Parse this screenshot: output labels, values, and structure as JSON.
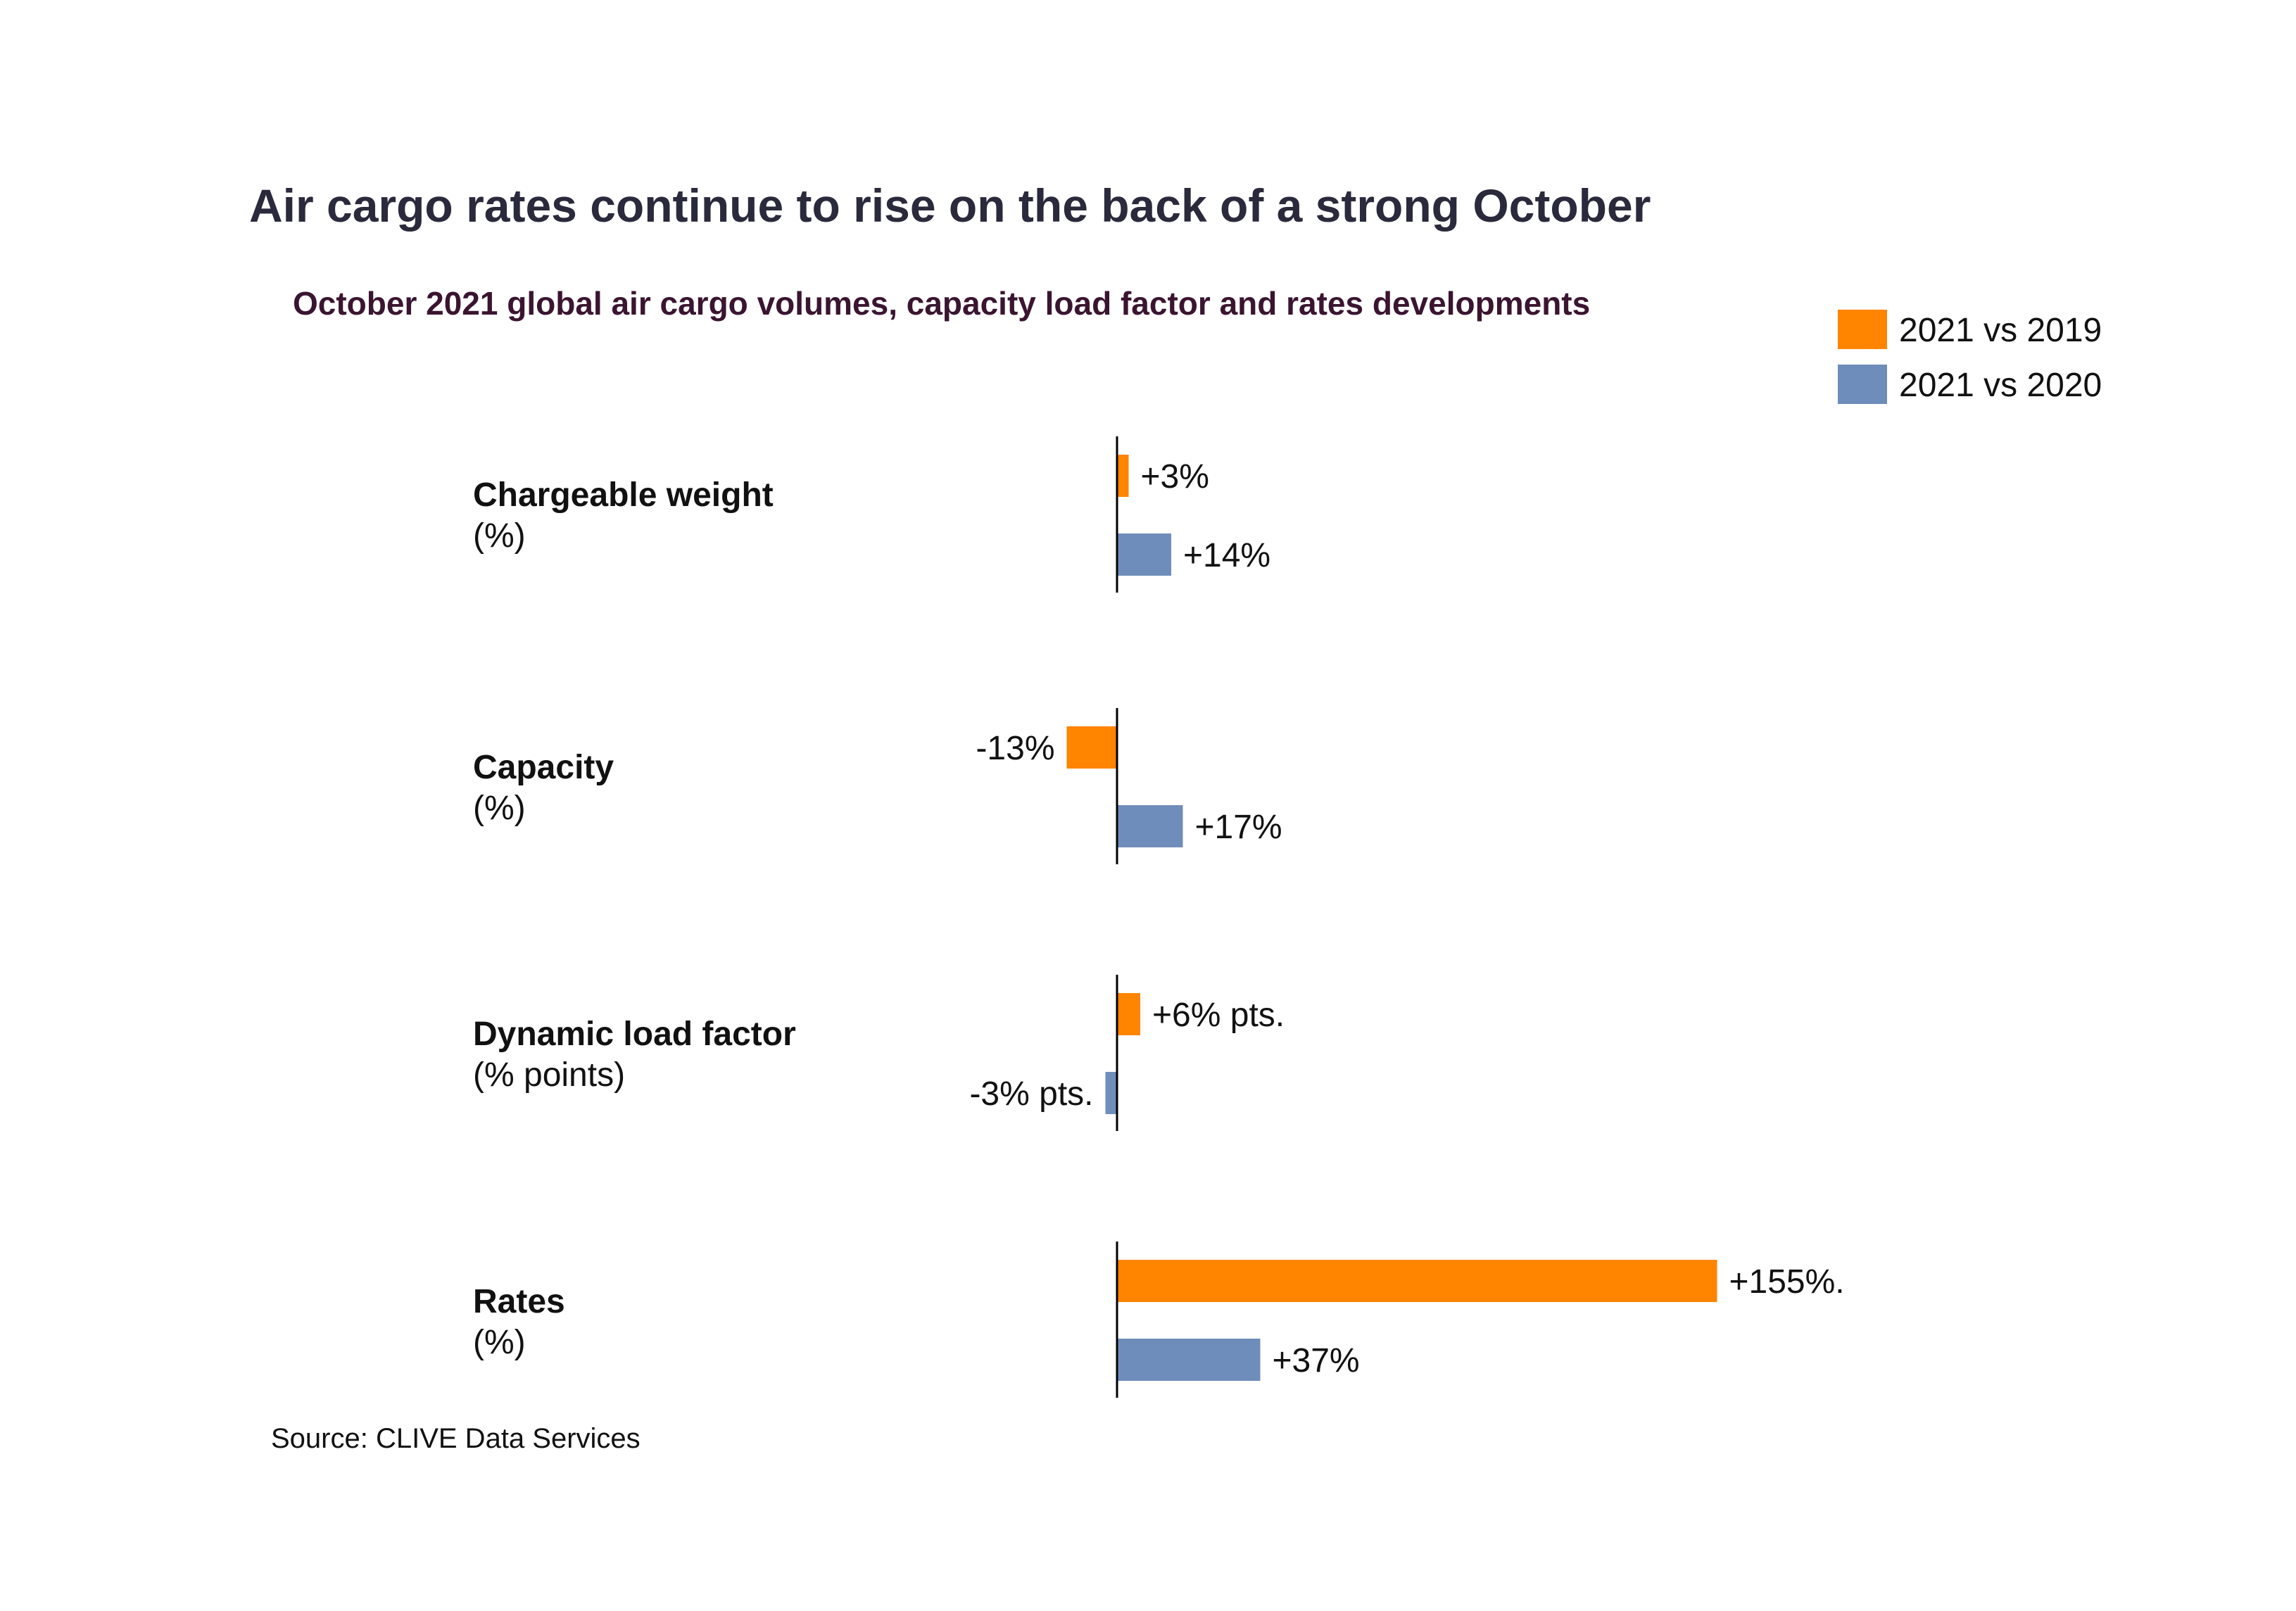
{
  "title": "Air cargo rates continue to rise on the back of a strong October",
  "subtitle": "October 2021 global air cargo volumes, capacity load factor and rates developments",
  "source": "Source: CLIVE Data Services",
  "colors": {
    "series_2019": "#FF8400",
    "series_2020": "#6F8DBA",
    "axis": "#000000",
    "text": "#111111"
  },
  "legend": [
    {
      "label": "2021 vs 2019",
      "color": "#FF8400"
    },
    {
      "label": "2021 vs 2020",
      "color": "#6F8DBA"
    }
  ],
  "chart_data": {
    "type": "bar",
    "orientation": "horizontal",
    "title": "Air cargo rates continue to rise on the back of a strong October",
    "subtitle": "October 2021 global air cargo volumes, capacity load factor and rates developments",
    "categories": [
      {
        "name": "Chargeable weight",
        "unit": "(%)"
      },
      {
        "name": "Capacity",
        "unit": "(%)"
      },
      {
        "name": "Dynamic load factor",
        "unit": "(% points)"
      },
      {
        "name": "Rates",
        "unit": "(%)"
      }
    ],
    "series": [
      {
        "name": "2021 vs 2019",
        "values": [
          3,
          -13,
          6,
          155
        ],
        "labels": [
          "+3%",
          "-13%",
          "+6% pts.",
          "+155%."
        ]
      },
      {
        "name": "2021 vs 2020",
        "values": [
          14,
          17,
          -3,
          37
        ],
        "labels": [
          "+14%",
          "+17%",
          "-3% pts.",
          "+37%"
        ]
      }
    ],
    "legend_position": "top-right",
    "grid": false
  }
}
